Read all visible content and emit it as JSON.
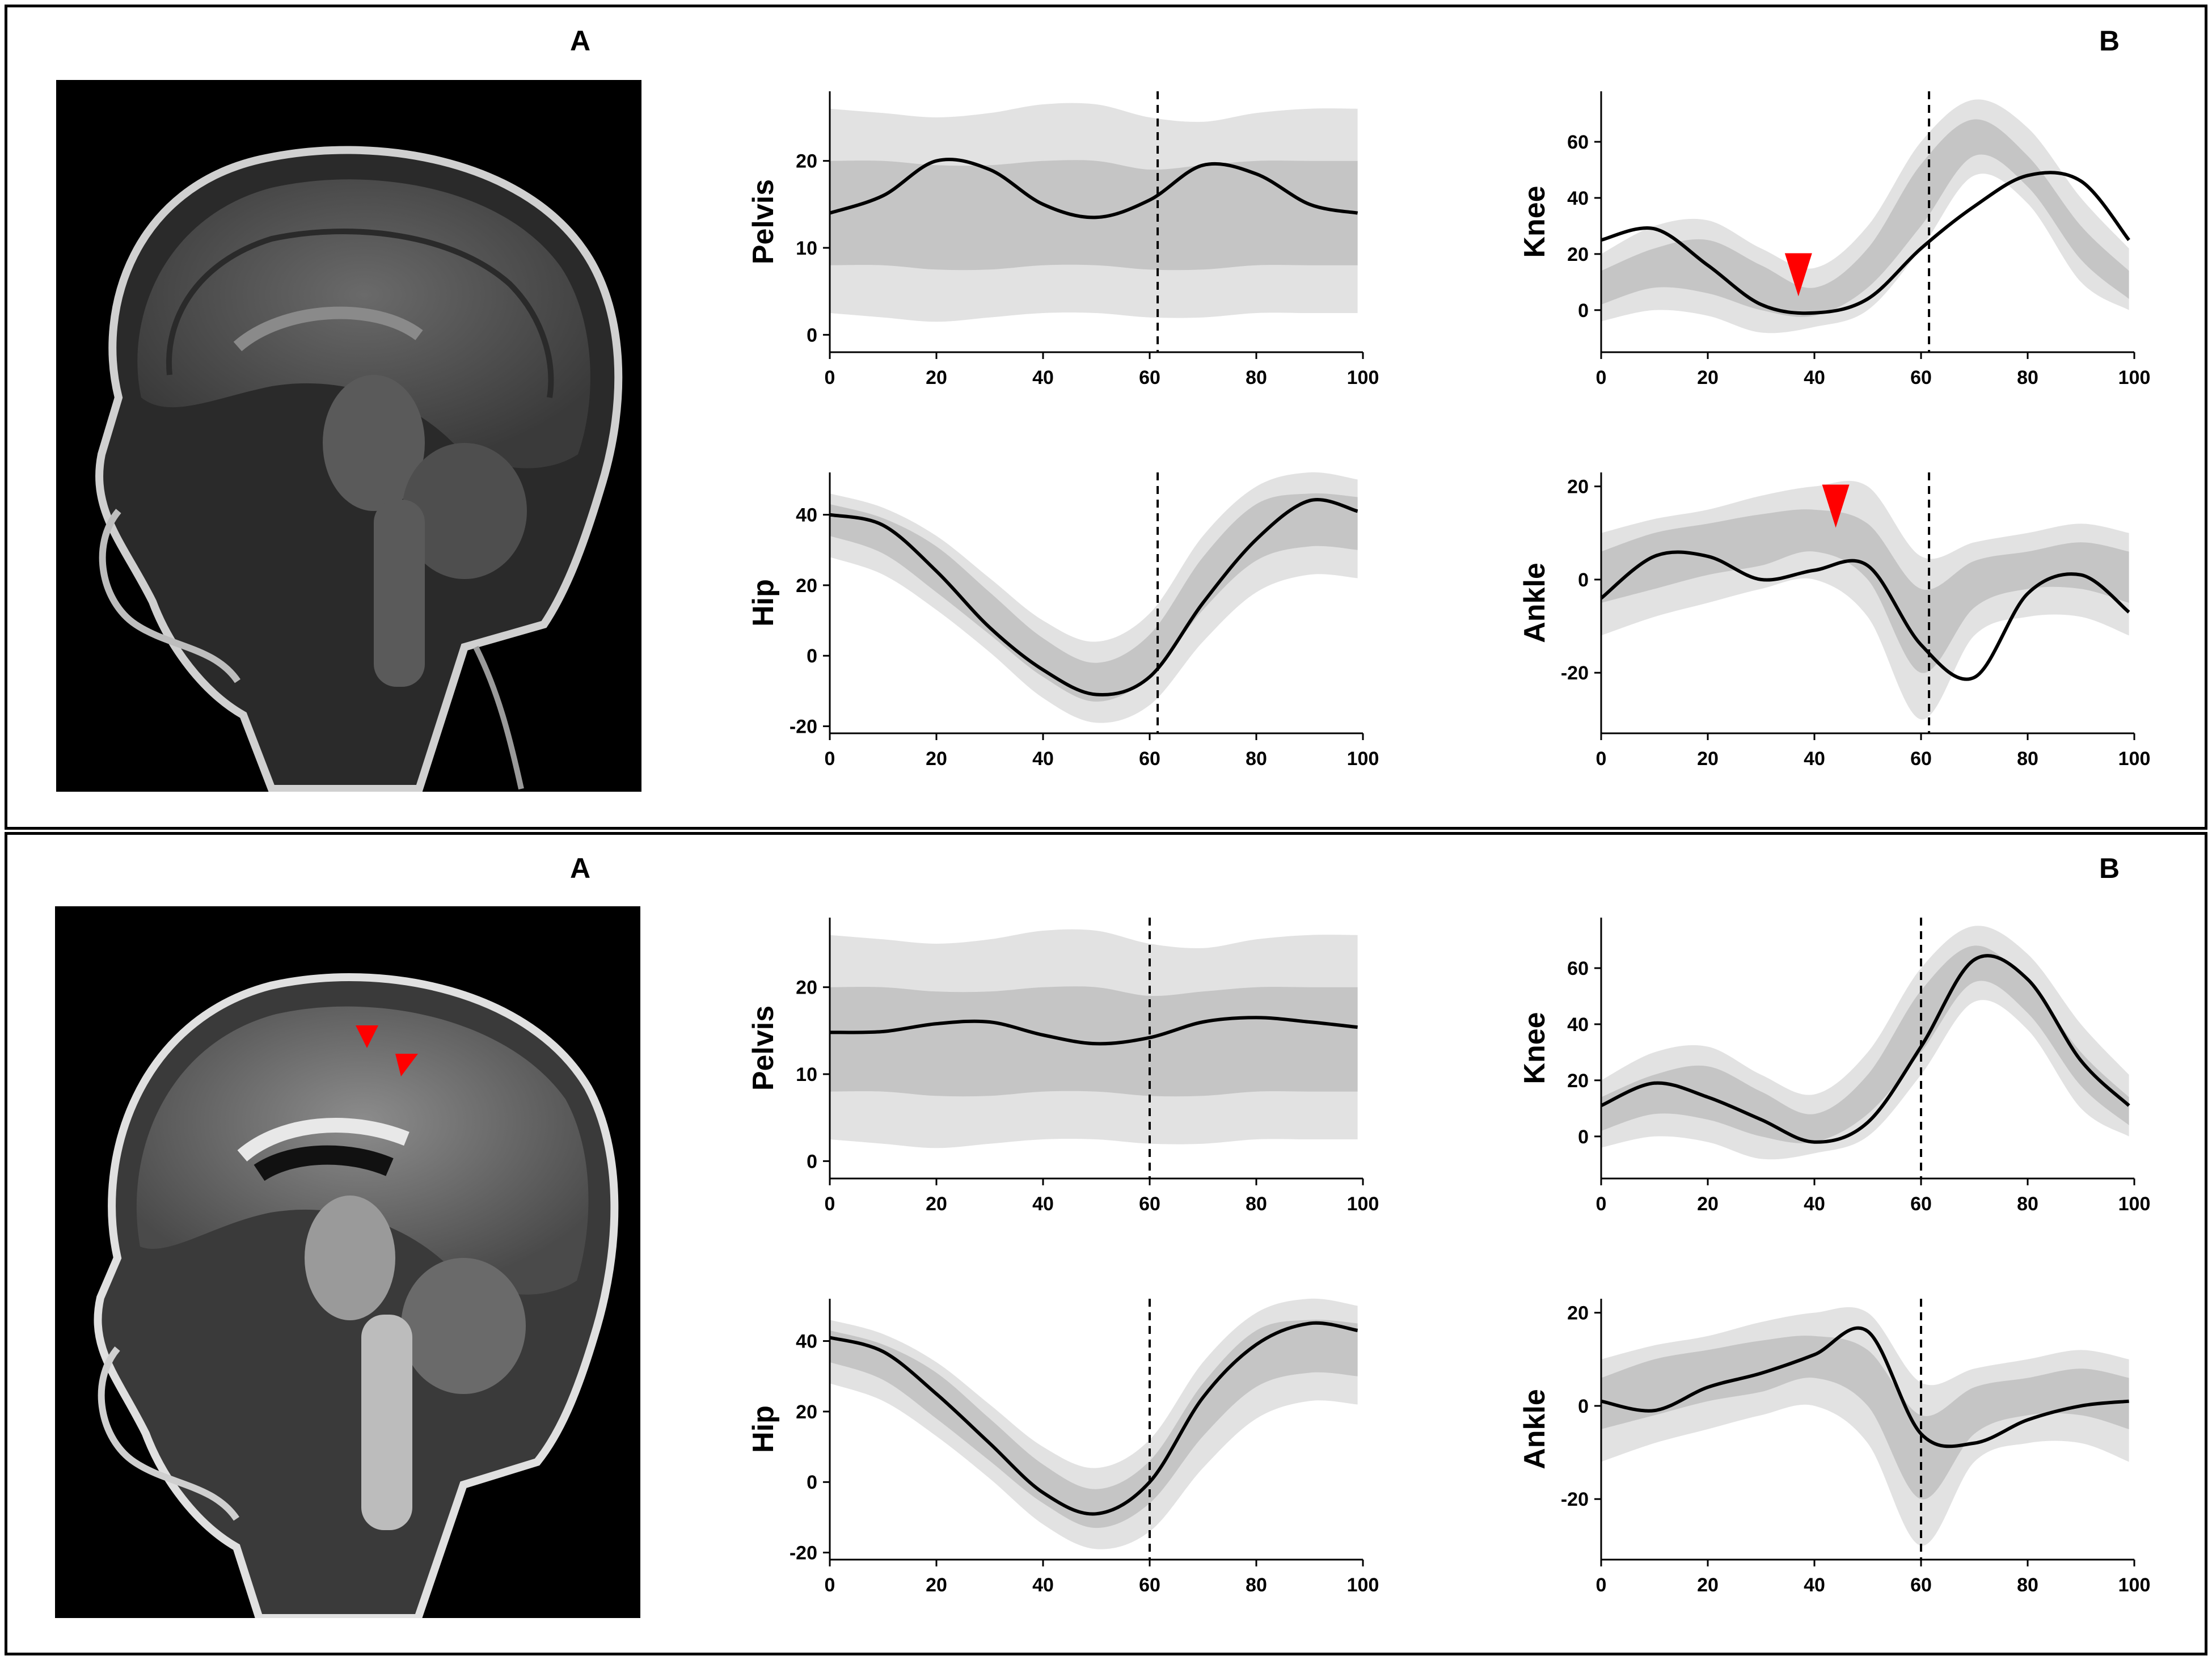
{
  "panels": [
    {
      "letter_left": "A",
      "letter_right": "B"
    },
    {
      "letter_left": "A",
      "letter_right": "B"
    }
  ],
  "colors": {
    "outer_band": "#e2e2e2",
    "inner_band": "#c5c5c5",
    "mean_line": "#000000",
    "marker": "#ff0000"
  },
  "chart_data": [
    {
      "type": "area",
      "panel": 1,
      "ylabel": "Pelvis",
      "xlim": [
        0,
        100
      ],
      "ylim": [
        -2,
        28
      ],
      "xticks": [
        0,
        20,
        40,
        60,
        80,
        100
      ],
      "yticks": [
        0,
        10,
        20
      ],
      "toe_off_x": 61.5,
      "x": [
        0,
        10,
        20,
        30,
        40,
        50,
        60,
        70,
        80,
        90,
        99
      ],
      "outer_upper": [
        26,
        25.5,
        25,
        25.5,
        26.5,
        26.5,
        25,
        24.5,
        25.5,
        26,
        26
      ],
      "outer_lower": [
        2.5,
        2,
        1.5,
        2,
        2.5,
        2.5,
        2,
        2,
        2.5,
        2.5,
        2.5
      ],
      "inner_upper": [
        20,
        20,
        19.5,
        19.5,
        20,
        20,
        19,
        19.5,
        20,
        20,
        20
      ],
      "inner_lower": [
        8,
        8,
        7.5,
        7.5,
        8,
        8,
        7.5,
        7.5,
        8,
        8,
        8
      ],
      "mean": [
        14,
        16,
        20,
        19,
        15,
        13.5,
        15.5,
        19.5,
        18.5,
        15,
        14
      ]
    },
    {
      "type": "area",
      "panel": 1,
      "ylabel": "Knee",
      "xlim": [
        0,
        100
      ],
      "ylim": [
        -15,
        78
      ],
      "xticks": [
        0,
        20,
        40,
        60,
        80,
        100
      ],
      "yticks": [
        0,
        20,
        40,
        60
      ],
      "toe_off_x": 61.5,
      "x": [
        0,
        10,
        20,
        30,
        40,
        50,
        60,
        70,
        80,
        90,
        99
      ],
      "outer_upper": [
        20,
        30,
        32,
        22,
        15,
        30,
        60,
        75,
        65,
        40,
        22
      ],
      "outer_lower": [
        -4,
        0,
        -2,
        -8,
        -6,
        0,
        22,
        48,
        38,
        10,
        0
      ],
      "inner_upper": [
        14,
        22,
        25,
        16,
        8,
        22,
        52,
        68,
        55,
        30,
        14
      ],
      "inner_lower": [
        2,
        8,
        6,
        0,
        -2,
        8,
        30,
        55,
        44,
        18,
        4
      ],
      "mean": [
        25,
        29,
        16,
        2,
        -1,
        4,
        22,
        37,
        48,
        46,
        25
      ],
      "markers": [
        {
          "x": 37,
          "y": 13
        }
      ]
    },
    {
      "type": "area",
      "panel": 1,
      "ylabel": "Hip",
      "xlim": [
        0,
        100
      ],
      "ylim": [
        -22,
        52
      ],
      "xticks": [
        0,
        20,
        40,
        60,
        80,
        100
      ],
      "yticks": [
        -20,
        0,
        20,
        40
      ],
      "toe_off_x": 61.5,
      "x": [
        0,
        10,
        20,
        30,
        40,
        50,
        60,
        70,
        80,
        90,
        99
      ],
      "outer_upper": [
        46,
        42,
        34,
        22,
        10,
        4,
        12,
        34,
        48,
        52,
        50
      ],
      "outer_lower": [
        28,
        23,
        13,
        1,
        -12,
        -19,
        -14,
        4,
        18,
        23,
        22
      ],
      "inner_upper": [
        43,
        39,
        31,
        18,
        5,
        -2,
        6,
        28,
        43,
        46,
        45
      ],
      "inner_lower": [
        34,
        29,
        18,
        6,
        -6,
        -13,
        -6,
        13,
        27,
        31,
        30
      ],
      "mean": [
        40,
        37,
        24,
        8,
        -4,
        -11,
        -6,
        15,
        33,
        44,
        41
      ]
    },
    {
      "type": "area",
      "panel": 1,
      "ylabel": "Ankle",
      "xlim": [
        0,
        100
      ],
      "ylim": [
        -33,
        23
      ],
      "xticks": [
        0,
        20,
        40,
        60,
        80,
        100
      ],
      "yticks": [
        -20,
        0,
        20
      ],
      "toe_off_x": 61.5,
      "x": [
        0,
        10,
        20,
        30,
        40,
        50,
        60,
        70,
        80,
        90,
        99
      ],
      "outer_upper": [
        10,
        13,
        15,
        18,
        20,
        20,
        5,
        8,
        10,
        12,
        10
      ],
      "outer_lower": [
        -12,
        -8,
        -5,
        -2,
        0,
        -8,
        -30,
        -12,
        -8,
        -8,
        -12
      ],
      "inner_upper": [
        6,
        10,
        12,
        14,
        15,
        12,
        -2,
        4,
        6,
        8,
        6
      ],
      "inner_lower": [
        -5,
        -2,
        1,
        3,
        6,
        0,
        -20,
        -6,
        -2,
        -2,
        -5
      ],
      "mean": [
        -4,
        5,
        5,
        0,
        2,
        3,
        -14,
        -21,
        -3,
        1,
        -7
      ],
      "markers": [
        {
          "x": 44,
          "y": 16
        }
      ]
    },
    {
      "type": "area",
      "panel": 2,
      "ylabel": "Pelvis",
      "xlim": [
        0,
        100
      ],
      "ylim": [
        -2,
        28
      ],
      "xticks": [
        0,
        20,
        40,
        60,
        80,
        100
      ],
      "yticks": [
        0,
        10,
        20
      ],
      "toe_off_x": 60,
      "x": [
        0,
        10,
        20,
        30,
        40,
        50,
        60,
        70,
        80,
        90,
        99
      ],
      "outer_upper": [
        26,
        25.5,
        25,
        25.5,
        26.5,
        26.5,
        25,
        24.5,
        25.5,
        26,
        26
      ],
      "outer_lower": [
        2.5,
        2,
        1.5,
        2,
        2.5,
        2.5,
        2,
        2,
        2.5,
        2.5,
        2.5
      ],
      "inner_upper": [
        20,
        20,
        19.5,
        19.5,
        20,
        20,
        19,
        19.5,
        20,
        20,
        20
      ],
      "inner_lower": [
        8,
        8,
        7.5,
        7.5,
        8,
        8,
        7.5,
        7.5,
        8,
        8,
        8
      ],
      "mean": [
        14.8,
        14.9,
        15.8,
        16,
        14.5,
        13.5,
        14.2,
        16,
        16.5,
        16,
        15.4
      ]
    },
    {
      "type": "area",
      "panel": 2,
      "ylabel": "Knee",
      "xlim": [
        0,
        100
      ],
      "ylim": [
        -15,
        78
      ],
      "xticks": [
        0,
        20,
        40,
        60,
        80,
        100
      ],
      "yticks": [
        0,
        20,
        40,
        60
      ],
      "toe_off_x": 60,
      "x": [
        0,
        10,
        20,
        30,
        40,
        50,
        60,
        70,
        80,
        90,
        99
      ],
      "outer_upper": [
        20,
        30,
        32,
        22,
        15,
        30,
        60,
        75,
        65,
        40,
        22
      ],
      "outer_lower": [
        -4,
        0,
        -2,
        -8,
        -6,
        0,
        22,
        48,
        38,
        10,
        0
      ],
      "inner_upper": [
        14,
        22,
        25,
        16,
        8,
        22,
        52,
        68,
        55,
        30,
        14
      ],
      "inner_lower": [
        2,
        8,
        6,
        0,
        -2,
        8,
        30,
        55,
        44,
        18,
        4
      ],
      "mean": [
        11,
        19,
        14,
        6,
        -2,
        5,
        32,
        63,
        56,
        27,
        11
      ]
    },
    {
      "type": "area",
      "panel": 2,
      "ylabel": "Hip",
      "xlim": [
        0,
        100
      ],
      "ylim": [
        -22,
        52
      ],
      "xticks": [
        0,
        20,
        40,
        60,
        80,
        100
      ],
      "yticks": [
        -20,
        0,
        20,
        40
      ],
      "toe_off_x": 60,
      "x": [
        0,
        10,
        20,
        30,
        40,
        50,
        60,
        70,
        80,
        90,
        99
      ],
      "outer_upper": [
        46,
        42,
        34,
        22,
        10,
        4,
        12,
        34,
        48,
        52,
        50
      ],
      "outer_lower": [
        28,
        23,
        13,
        1,
        -12,
        -19,
        -14,
        4,
        18,
        23,
        22
      ],
      "inner_upper": [
        43,
        39,
        31,
        18,
        5,
        -2,
        6,
        28,
        43,
        46,
        45
      ],
      "inner_lower": [
        34,
        29,
        18,
        6,
        -6,
        -13,
        -6,
        13,
        27,
        31,
        30
      ],
      "mean": [
        41,
        37,
        25,
        11,
        -3,
        -9,
        0,
        24,
        39,
        45,
        43
      ]
    },
    {
      "type": "area",
      "panel": 2,
      "ylabel": "Ankle",
      "xlim": [
        0,
        100
      ],
      "ylim": [
        -33,
        23
      ],
      "xticks": [
        0,
        20,
        40,
        60,
        80,
        100
      ],
      "yticks": [
        -20,
        0,
        20
      ],
      "toe_off_x": 60,
      "x": [
        0,
        10,
        20,
        30,
        40,
        50,
        60,
        70,
        80,
        90,
        99
      ],
      "outer_upper": [
        10,
        13,
        15,
        18,
        20,
        20,
        5,
        8,
        10,
        12,
        10
      ],
      "outer_lower": [
        -12,
        -8,
        -5,
        -2,
        0,
        -8,
        -30,
        -12,
        -8,
        -8,
        -12
      ],
      "inner_upper": [
        6,
        10,
        12,
        14,
        15,
        12,
        -2,
        4,
        6,
        8,
        6
      ],
      "inner_lower": [
        -5,
        -2,
        1,
        3,
        6,
        0,
        -20,
        -6,
        -2,
        -2,
        -5
      ],
      "mean": [
        1,
        -1,
        4,
        7,
        11,
        16,
        -6,
        -8,
        -3,
        0,
        1
      ]
    }
  ]
}
